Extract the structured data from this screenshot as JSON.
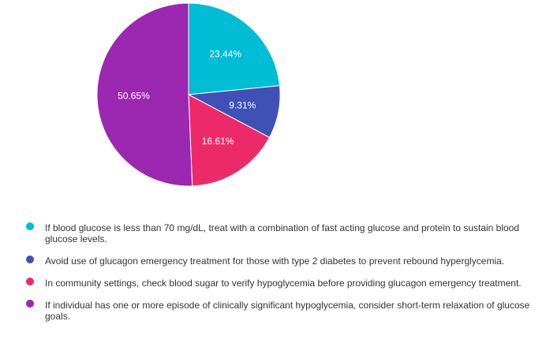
{
  "chart_data": {
    "type": "pie",
    "slices": [
      {
        "label": "23.44%",
        "value": 23.44,
        "color": "#00BCD4"
      },
      {
        "label": "9.31%",
        "value": 9.31,
        "color": "#3F51B5"
      },
      {
        "label": "16.61%",
        "value": 16.61,
        "color": "#EC2A6A"
      },
      {
        "label": "50.65%",
        "value": 50.65,
        "color": "#9C27B0"
      }
    ],
    "legend": {
      "placement": "bottom",
      "entries": [
        "If blood glucose is less than 70 mg/dL, treat with a combination of fast acting glucose and protein to sustain blood glucose levels.",
        "Avoid use of glucagon emergency treatment for those with type 2 diabetes to prevent rebound hyperglycemia.",
        "In community settings, check blood sugar to verify hypoglycemia before providing glucagon emergency treatment.",
        "If individual has one or more episode of clinically significant hypoglycemia, consider short-term relaxation of glucose goals."
      ]
    }
  }
}
